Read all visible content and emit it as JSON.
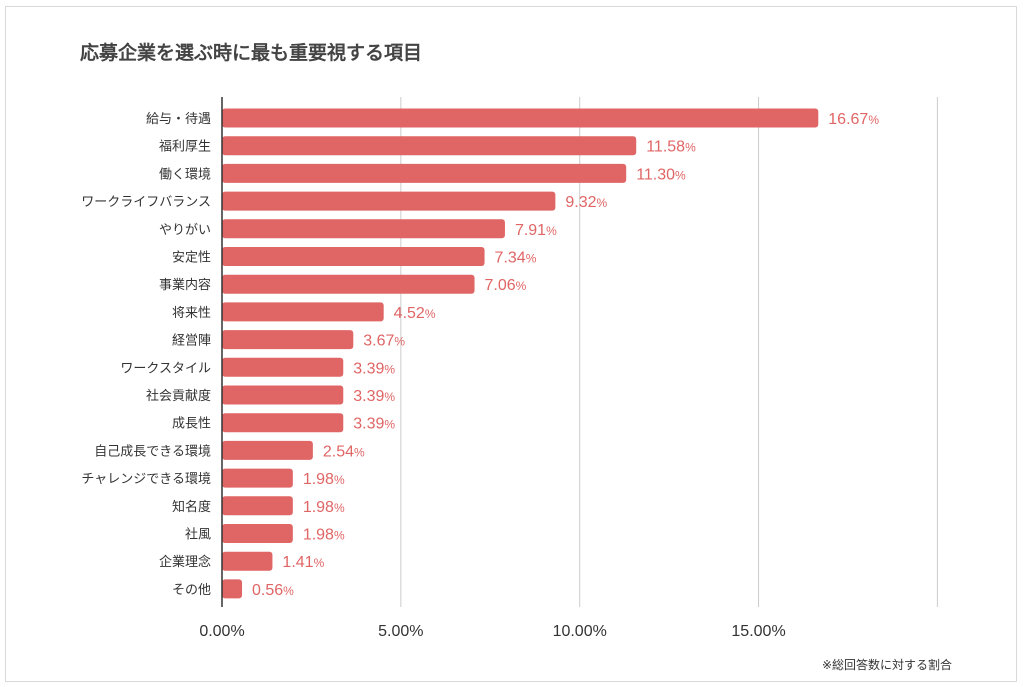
{
  "chart_data": {
    "type": "bar",
    "orientation": "horizontal",
    "title": "応募企業を選ぶ時に最も重要視する項目",
    "note": "※総回答数に対する割合",
    "categories": [
      "給与・待遇",
      "福利厚生",
      "働く環境",
      "ワークライフバランス",
      "やりがい",
      "安定性",
      "事業内容",
      "将来性",
      "経営陣",
      "ワークスタイル",
      "社会貢献度",
      "成長性",
      "自己成長できる環境",
      "チャレンジできる環境",
      "知名度",
      "社風",
      "企業理念",
      "その他"
    ],
    "values": [
      16.67,
      11.58,
      11.3,
      9.32,
      7.91,
      7.34,
      7.06,
      4.52,
      3.67,
      3.39,
      3.39,
      3.39,
      2.54,
      1.98,
      1.98,
      1.98,
      1.41,
      0.56
    ],
    "value_labels": [
      "16.67",
      "11.58",
      "11.30",
      "9.32",
      "7.91",
      "7.34",
      "7.06",
      "4.52",
      "3.67",
      "3.39",
      "3.39",
      "3.39",
      "2.54",
      "1.98",
      "1.98",
      "1.98",
      "1.41",
      "0.56"
    ],
    "value_suffix": "%",
    "x_ticks": [
      0,
      5,
      10,
      15,
      20
    ],
    "x_tick_labels": [
      "0.00%",
      "5.00%",
      "10.00%",
      "15.00%",
      ""
    ],
    "xlim": [
      0,
      20
    ],
    "grid": true,
    "legend": "none",
    "bar_color": "#e06565",
    "label_color": "#e06565",
    "grid_color": "#cccccc"
  }
}
